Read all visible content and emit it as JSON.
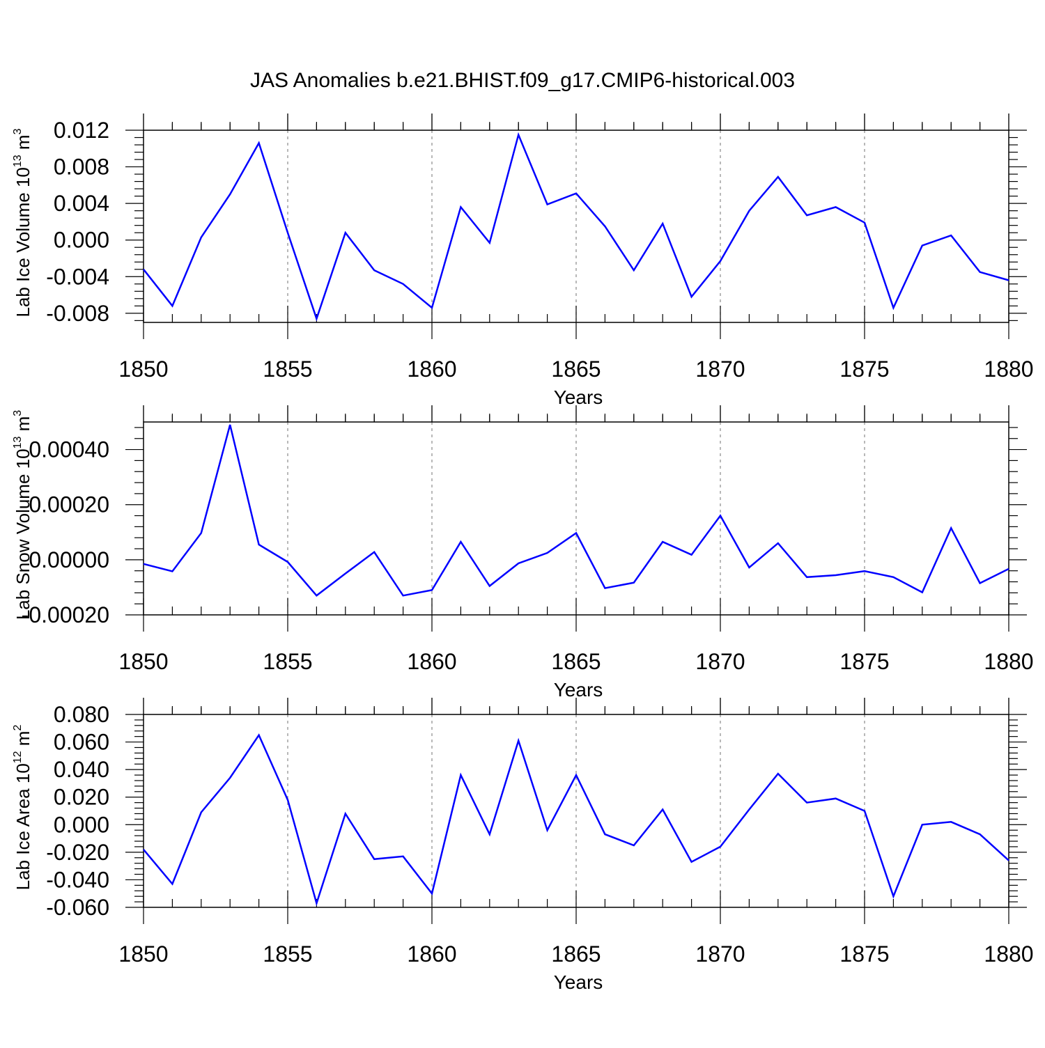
{
  "title": "JAS Anomalies b.e21.BHIST.f09_g17.CMIP6-historical.003",
  "colors": {
    "line": "#0000ff",
    "frame": "#000000",
    "grid": "#888888",
    "background": "#ffffff"
  },
  "chart_data": [
    {
      "type": "line",
      "ylabel": {
        "main": "Lab Ice Volume 10",
        "exp": "13",
        "unit": " m",
        "unit_exp": "3"
      },
      "xlabel": "Years",
      "xlim": [
        1850,
        1880
      ],
      "ylim": [
        -0.009,
        0.012
      ],
      "x_ticks": [
        1850,
        1855,
        1860,
        1865,
        1870,
        1875,
        1880
      ],
      "x_tick_labels": [
        "1850",
        "1855",
        "1860",
        "1865",
        "1870",
        "1875",
        "1880"
      ],
      "y_ticks": [
        -0.008,
        -0.004,
        0.0,
        0.004,
        0.008,
        0.012
      ],
      "y_tick_labels": [
        "-0.008",
        "-0.004",
        "0.000",
        "0.004",
        "0.008",
        "0.012"
      ],
      "series": [
        {
          "name": "Lab Ice Volume",
          "x": [
            1850,
            1851,
            1852,
            1853,
            1854,
            1855,
            1856,
            1857,
            1858,
            1859,
            1860,
            1861,
            1862,
            1863,
            1864,
            1865,
            1866,
            1867,
            1868,
            1869,
            1870,
            1871,
            1872,
            1873,
            1874,
            1875,
            1876,
            1877,
            1878,
            1879,
            1880
          ],
          "values": [
            -0.0032,
            -0.0072,
            0.0003,
            0.005,
            0.0106,
            0.0008,
            -0.0086,
            0.0008,
            -0.0033,
            -0.0048,
            -0.0074,
            0.0036,
            -0.0003,
            0.0115,
            0.0039,
            0.0051,
            0.0015,
            -0.0033,
            0.0018,
            -0.0062,
            -0.0023,
            0.0032,
            0.0069,
            0.0027,
            0.0036,
            0.0019,
            -0.0074,
            -0.0006,
            0.0005,
            -0.0035,
            -0.0044
          ]
        }
      ]
    },
    {
      "type": "line",
      "ylabel": {
        "main": "Lab Snow Volume 10",
        "exp": "13",
        "unit": " m",
        "unit_exp": "3"
      },
      "xlabel": "Years",
      "xlim": [
        1850,
        1880
      ],
      "ylim": [
        -0.0002,
        0.0005
      ],
      "x_ticks": [
        1850,
        1855,
        1860,
        1865,
        1870,
        1875,
        1880
      ],
      "x_tick_labels": [
        "1850",
        "1855",
        "1860",
        "1865",
        "1870",
        "1875",
        "1880"
      ],
      "y_ticks": [
        -0.0002,
        0.0,
        0.0002,
        0.0004
      ],
      "y_tick_labels": [
        "-0.00020",
        "0.00000",
        "0.00020",
        "0.00040"
      ],
      "series": [
        {
          "name": "Lab Snow Volume",
          "x": [
            1850,
            1851,
            1852,
            1853,
            1854,
            1855,
            1856,
            1857,
            1858,
            1859,
            1860,
            1861,
            1862,
            1863,
            1864,
            1865,
            1866,
            1867,
            1868,
            1869,
            1870,
            1871,
            1872,
            1873,
            1874,
            1875,
            1876,
            1877,
            1878,
            1879,
            1880
          ],
          "values": [
            -1.5e-05,
            -4.2e-05,
            9.7e-05,
            0.00049,
            5.5e-05,
            -8e-06,
            -0.00013,
            -5e-05,
            2.8e-05,
            -0.00013,
            -0.00011,
            6.5e-05,
            -9.5e-05,
            -1.3e-05,
            2.5e-05,
            9.7e-05,
            -0.000103,
            -8.3e-05,
            6.5e-05,
            1.8e-05,
            0.00016,
            -2.8e-05,
            6e-05,
            -6.3e-05,
            -5.6e-05,
            -4.1e-05,
            -6.3e-05,
            -0.000118,
            0.000115,
            -8.5e-05,
            -3.3e-05
          ]
        }
      ]
    },
    {
      "type": "line",
      "ylabel": {
        "main": "Lab Ice Area 10",
        "exp": "12",
        "unit": " m",
        "unit_exp": "2"
      },
      "xlabel": "Years",
      "xlim": [
        1850,
        1880
      ],
      "ylim": [
        -0.06,
        0.08
      ],
      "x_ticks": [
        1850,
        1855,
        1860,
        1865,
        1870,
        1875,
        1880
      ],
      "x_tick_labels": [
        "1850",
        "1855",
        "1860",
        "1865",
        "1870",
        "1875",
        "1880"
      ],
      "y_ticks": [
        -0.06,
        -0.04,
        -0.02,
        0.0,
        0.02,
        0.04,
        0.06,
        0.08
      ],
      "y_tick_labels": [
        "-0.060",
        "-0.040",
        "-0.020",
        "0.000",
        "0.020",
        "0.040",
        "0.060",
        "0.080"
      ],
      "series": [
        {
          "name": "Lab Ice Area",
          "x": [
            1850,
            1851,
            1852,
            1853,
            1854,
            1855,
            1856,
            1857,
            1858,
            1859,
            1860,
            1861,
            1862,
            1863,
            1864,
            1865,
            1866,
            1867,
            1868,
            1869,
            1870,
            1871,
            1872,
            1873,
            1874,
            1875,
            1876,
            1877,
            1878,
            1879,
            1880
          ],
          "values": [
            -0.018,
            -0.043,
            0.009,
            0.034,
            0.065,
            0.018,
            -0.057,
            0.008,
            -0.025,
            -0.023,
            -0.05,
            0.036,
            -0.007,
            0.061,
            -0.004,
            0.036,
            -0.007,
            -0.015,
            0.011,
            -0.027,
            -0.016,
            0.011,
            0.037,
            0.016,
            0.019,
            0.01,
            -0.052,
            0.0,
            0.002,
            -0.007,
            -0.026
          ]
        }
      ]
    }
  ]
}
